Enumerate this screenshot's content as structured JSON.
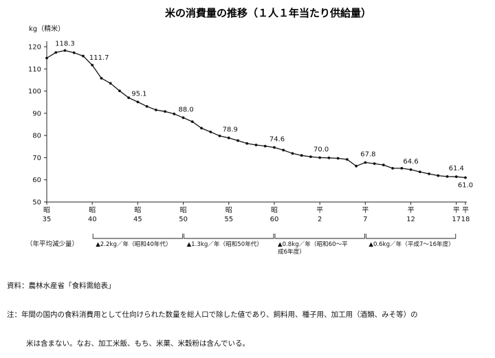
{
  "chart_data": {
    "type": "line",
    "title": "米の消費量の推移（１人１年当たり供給量）",
    "ylabel": "kg（精米）",
    "ylim": [
      50,
      120
    ],
    "yticks": [
      50,
      60,
      70,
      80,
      90,
      100,
      110,
      120
    ],
    "grid": false,
    "x_era": [
      "昭",
      "昭",
      "昭",
      "昭",
      "昭",
      "昭",
      "平",
      "平",
      "平",
      "平",
      "平"
    ],
    "x_num": [
      "35",
      "40",
      "45",
      "50",
      "55",
      "60",
      "2",
      "7",
      "12",
      "17",
      "18"
    ],
    "x_tick_years": [
      1960,
      1965,
      1970,
      1975,
      1980,
      1985,
      1990,
      1995,
      2000,
      2005,
      2006
    ],
    "series": [
      {
        "x": [
          1960,
          1961,
          1962,
          1963,
          1964,
          1965,
          1966,
          1967,
          1968,
          1969,
          1970,
          1971,
          1972,
          1973,
          1974,
          1975,
          1976,
          1977,
          1978,
          1979,
          1980,
          1981,
          1982,
          1983,
          1984,
          1985,
          1986,
          1987,
          1988,
          1989,
          1990,
          1991,
          1992,
          1993,
          1994,
          1995,
          1996,
          1997,
          1998,
          1999,
          2000,
          2001,
          2002,
          2003,
          2004,
          2005,
          2006
        ],
        "values": [
          114.9,
          117.4,
          118.3,
          117.3,
          115.8,
          111.7,
          105.8,
          103.5,
          100.1,
          97.0,
          95.1,
          93.1,
          91.5,
          90.8,
          89.7,
          88.0,
          86.2,
          83.3,
          81.6,
          79.8,
          78.9,
          77.7,
          76.4,
          75.7,
          75.2,
          74.6,
          73.4,
          71.9,
          71.0,
          70.4,
          70.0,
          69.9,
          69.7,
          69.2,
          66.2,
          67.8,
          67.3,
          66.7,
          65.2,
          65.2,
          64.6,
          63.6,
          62.7,
          61.9,
          61.5,
          61.4,
          61.0
        ]
      }
    ],
    "data_labels": [
      {
        "x": 1962,
        "text": "118.3"
      },
      {
        "x": 1965,
        "text": "111.7"
      },
      {
        "x": 1970,
        "text": "95.1"
      },
      {
        "x": 1975,
        "text": "88.0"
      },
      {
        "x": 1980,
        "text": "78.9"
      },
      {
        "x": 1985,
        "text": "74.6"
      },
      {
        "x": 1990,
        "text": "70.0"
      },
      {
        "x": 1995,
        "text": "67.8"
      },
      {
        "x": 2000,
        "text": "64.6"
      },
      {
        "x": 2005,
        "text": "61.4"
      },
      {
        "x": 2006,
        "text": "61.0"
      }
    ],
    "rate_label": "（年平均減少量）",
    "rates": [
      {
        "from": 1965,
        "to": 1975,
        "lines": [
          "▲2.2kg／年（昭和40年代）"
        ]
      },
      {
        "from": 1975,
        "to": 1985,
        "lines": [
          "▲1.3kg／年（昭和50年代）"
        ]
      },
      {
        "from": 1985,
        "to": 1995,
        "lines": [
          "▲0.8kg／年（昭和60～平",
          "成6年度）"
        ]
      },
      {
        "from": 1995,
        "to": 2005,
        "lines": [
          "▲0.6kg／年（平成7～16年度）"
        ]
      }
    ]
  },
  "notes": {
    "source": "資料：農林水産省「食料需給表」",
    "note_line1": "注：年間の国内の食料消費用として仕向けられた数量を総人口で除した値であり、飼料用、種子用、加工用（酒類、みそ等）の",
    "note_line2": "米は含まない。なお、加工米飯、もち、米菓、米穀粉は含んでいる。"
  }
}
